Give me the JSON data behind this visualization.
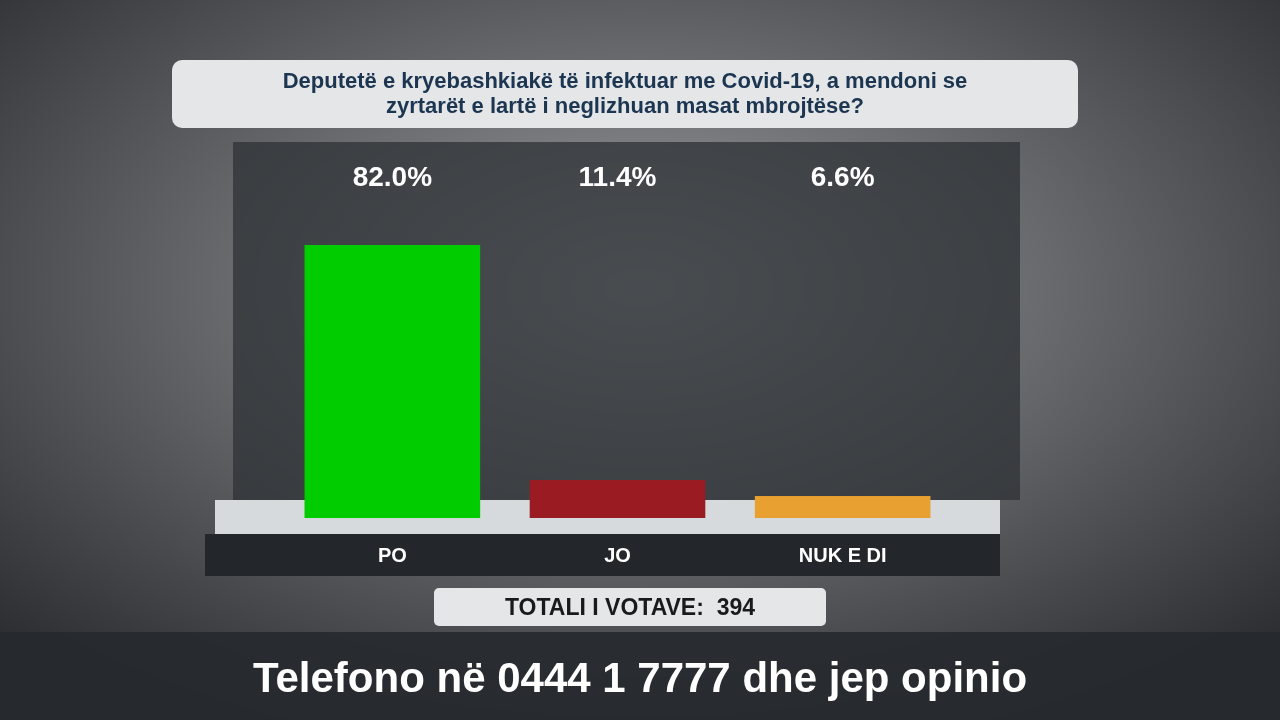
{
  "chart_data": {
    "type": "bar",
    "title": "Deputetë e kryebashkiakë të infektuar me Covid-19, a mendoni se zyrtarët e lartë i neglizhuan masat mbrojtëse?",
    "categories": [
      "PO",
      "JO",
      "NUK E DI"
    ],
    "values": [
      82.0,
      11.4,
      6.6
    ],
    "colors": [
      "#00cc00",
      "#9b1b22",
      "#e8a030"
    ],
    "value_labels": [
      "82.0%",
      "11.4%",
      "6.6%"
    ],
    "annotations": [
      "TOTALI I VOTAVE:  394",
      "Telefono në 0444 1 7777 dhe jep opinio"
    ]
  }
}
